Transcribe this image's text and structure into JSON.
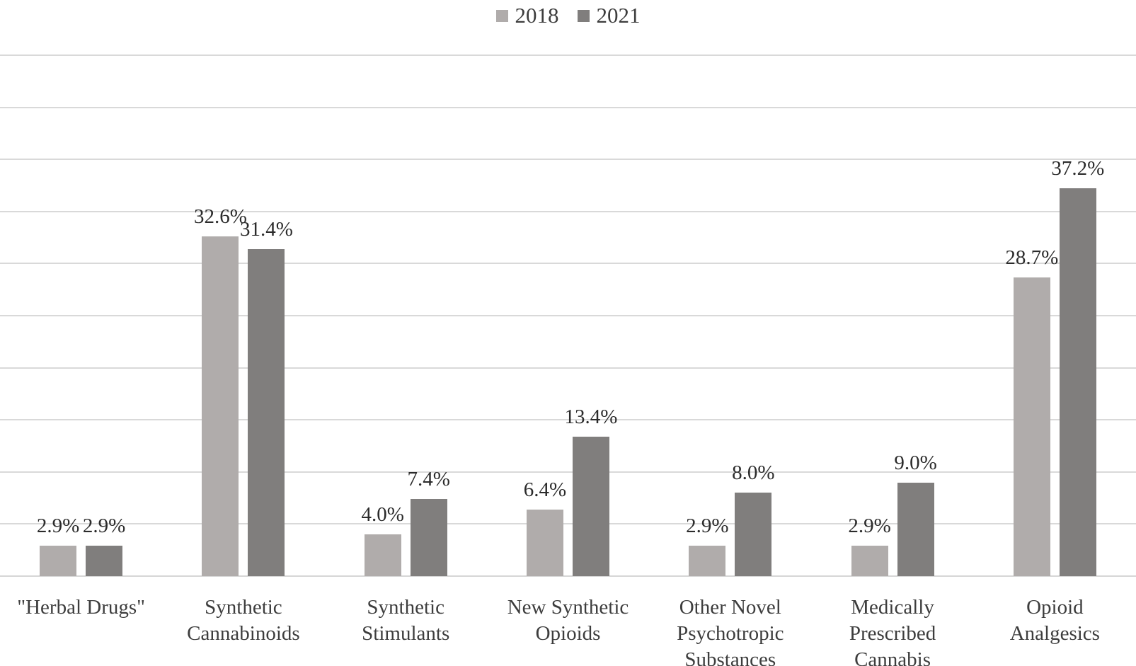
{
  "chart_data": {
    "type": "bar",
    "title": "",
    "xlabel": "",
    "ylabel": "",
    "categories": [
      "\"Herbal Drugs\"",
      "Synthetic Cannabinoids",
      "Synthetic Stimulants",
      "New Synthetic Opioids",
      "Other Novel Psychotropic Substances",
      "Medically Prescribed Cannabis",
      "Opioid Analgesics"
    ],
    "series": [
      {
        "name": "2018",
        "color": "#b0acab",
        "values": [
          2.9,
          32.6,
          4.0,
          6.4,
          2.9,
          2.9,
          28.7
        ],
        "labels": [
          "2.9%",
          "32.6%",
          "4.0%",
          "6.4%",
          "2.9%",
          "2.9%",
          "28.7%"
        ]
      },
      {
        "name": "2021",
        "color": "#807e7d",
        "values": [
          2.9,
          31.4,
          7.4,
          13.4,
          8.0,
          9.0,
          37.2
        ],
        "labels": [
          "2.9%",
          "31.4%",
          "7.4%",
          "13.4%",
          "8.0%",
          "9.0%",
          "37.2%"
        ]
      }
    ],
    "ylim": [
      0,
      50
    ],
    "gridline_step": 5,
    "grid": true,
    "y_axis_labels_visible": false,
    "legend_position": "top-center",
    "data_label_position": "outside-end"
  },
  "colors": {
    "series_2018": "#b0acab",
    "series_2021": "#807e7d",
    "gridline": "#d9d9d9",
    "axis_line": "#d6d6d6",
    "text": "#3d3d3d",
    "data_label_text": "#2b2b2b",
    "background": "#ffffff"
  }
}
